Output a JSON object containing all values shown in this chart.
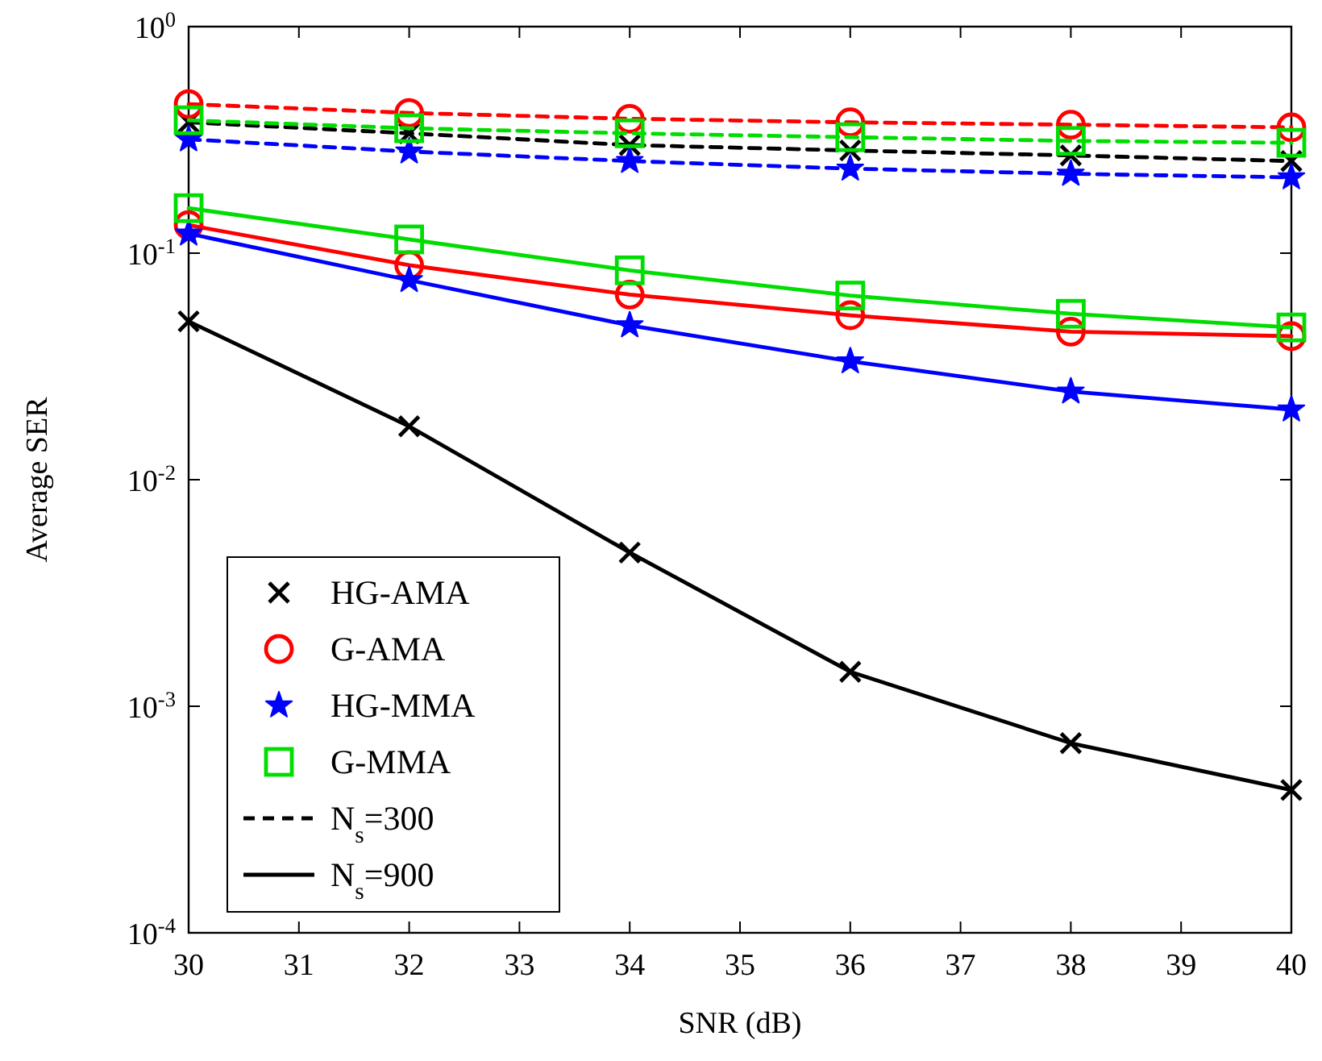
{
  "chart_data": {
    "type": "line",
    "xlabel": "SNR (dB)",
    "ylabel": "Average SER",
    "x": [
      30,
      32,
      34,
      36,
      38,
      40
    ],
    "xlim": [
      30,
      40
    ],
    "xticks": [
      30,
      31,
      32,
      33,
      34,
      35,
      36,
      37,
      38,
      39,
      40
    ],
    "ylim": [
      0.0001,
      1
    ],
    "yticks": [
      {
        "value": 0.0001,
        "label": "10$^{-4}$"
      },
      {
        "value": 0.001,
        "label": "10$^{-3}$"
      },
      {
        "value": 0.01,
        "label": "10$^{-2}$"
      },
      {
        "value": 0.1,
        "label": "10$^{-1}$"
      },
      {
        "value": 1,
        "label": "10$^{0}$"
      }
    ],
    "log": "y",
    "grid": false,
    "legend": "bottom left",
    "annotations": [
      "N$_{s}$=300",
      "N$_{s}$=900"
    ],
    "series": [
      {
        "name": "HG-AMA",
        "color": "#000000",
        "marker": "cross",
        "line_style": "dashed",
        "values": [
          0.378,
          0.338,
          0.3,
          0.284,
          0.27,
          0.255
        ]
      },
      {
        "name": "G-AMA",
        "color": "#ff0000",
        "marker": "circle",
        "line_style": "dashed",
        "values": [
          0.455,
          0.416,
          0.392,
          0.378,
          0.369,
          0.359
        ]
      },
      {
        "name": "HG-MMA",
        "color": "#0000ff",
        "marker": "star",
        "line_style": "dashed",
        "values": [
          0.318,
          0.281,
          0.255,
          0.236,
          0.224,
          0.216
        ]
      },
      {
        "name": "G-MMA",
        "color": "#00dd00",
        "marker": "square",
        "line_style": "dashed",
        "values": [
          0.386,
          0.356,
          0.338,
          0.325,
          0.313,
          0.307
        ]
      },
      {
        "color": "#000000",
        "marker": "cross",
        "line_style": "solid",
        "values": [
          0.05,
          0.0172,
          0.00477,
          0.00142,
          0.000687,
          0.000427
        ]
      },
      {
        "color": "#ff0000",
        "marker": "circle",
        "line_style": "solid",
        "values": [
          0.133,
          0.0885,
          0.0656,
          0.0532,
          0.045,
          0.043
        ]
      },
      {
        "color": "#0000ff",
        "marker": "star",
        "line_style": "solid",
        "values": [
          0.122,
          0.076,
          0.048,
          0.0333,
          0.0245,
          0.0204
        ]
      },
      {
        "color": "#00dd00",
        "marker": "square",
        "line_style": "solid",
        "values": [
          0.158,
          0.115,
          0.084,
          0.065,
          0.054,
          0.047
        ]
      }
    ]
  }
}
